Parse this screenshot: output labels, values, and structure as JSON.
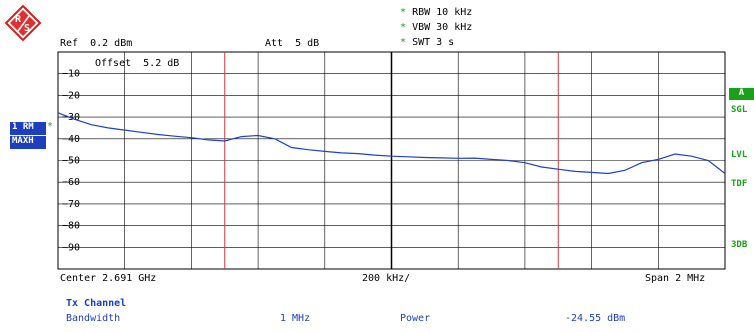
{
  "header": {
    "rbw": "RBW 10 kHz",
    "vbw": "VBW 30 kHz",
    "swt": "SWT 3 s",
    "ref": "Ref  0.2 dBm",
    "att": "Att  5 dB",
    "offset": "Offset  5.2 dB"
  },
  "left_panel": {
    "trace_label": "1 RM",
    "trace_mode": "MAXH"
  },
  "right_panel": {
    "trace_a": "A",
    "sgl": "SGL",
    "lvl": "LVL",
    "tdf": "TDF",
    "db3": "3DB"
  },
  "footer": {
    "center": "Center 2.691 GHz",
    "per_div": "200 kHz/",
    "span": "Span 2 MHz",
    "channel_title": "Tx Channel",
    "bandwidth_label": "Bandwidth",
    "bandwidth_value": "1 MHz",
    "power_label": "Power",
    "power_value": "-24.55 dBm"
  },
  "colors": {
    "trace": "#1f3fd0",
    "channel_lines": "#d03a3a",
    "grid": "#000000",
    "accent_green": "#1aa01a",
    "label_blue": "#1d3fbf"
  },
  "chart_data": {
    "type": "line",
    "xlabel": "",
    "ylabel": "",
    "xlim": [
      2.69,
      2.692
    ],
    "ylim": [
      -100,
      0
    ],
    "y_tick_labels": [
      "-10",
      "-20",
      "-30",
      "-40",
      "-50",
      "-60",
      "-70",
      "-80",
      "-90"
    ],
    "grid": true,
    "channel_lines_x": [
      2.6905,
      2.6915
    ],
    "series": [
      {
        "x": [
          2.69,
          2.69005,
          2.6901,
          2.69015,
          2.6902,
          2.69025,
          2.6903,
          2.69035,
          2.6904,
          2.69045,
          2.6905,
          2.69055,
          2.6906,
          2.69065,
          2.6907,
          2.69075,
          2.6908,
          2.69085,
          2.6909,
          2.69095,
          2.691,
          2.69105,
          2.6911,
          2.69115,
          2.6912,
          2.69125,
          2.6913,
          2.69135,
          2.6914,
          2.69145,
          2.6915,
          2.69155,
          2.6916,
          2.69165,
          2.6917,
          2.69175,
          2.6918,
          2.69185,
          2.6919,
          2.69195,
          2.692
        ],
        "y": [
          -28,
          -31,
          -33.5,
          -35,
          -36,
          -37,
          -38,
          -38.8,
          -39.5,
          -40.5,
          -41,
          -39,
          -38.5,
          -40,
          -44,
          -45,
          -45.8,
          -46.5,
          -46.8,
          -47.5,
          -48,
          -48.3,
          -48.6,
          -48.8,
          -49,
          -48.9,
          -49.5,
          -50,
          -51,
          -53,
          -54,
          -55,
          -55.5,
          -56,
          -54.5,
          -51,
          -49.5,
          -47,
          -48,
          -50,
          -56
        ]
      }
    ]
  }
}
